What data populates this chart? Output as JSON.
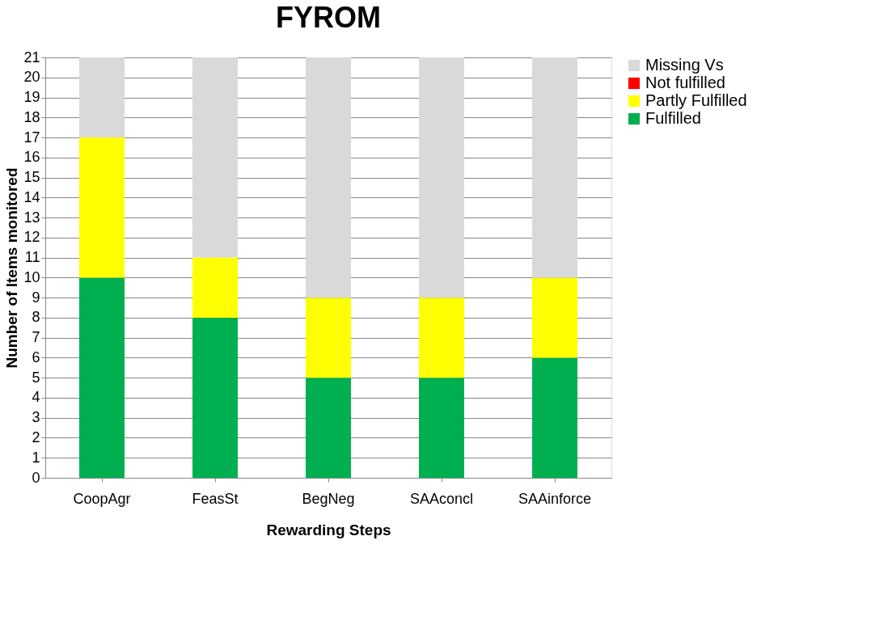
{
  "chart_data": {
    "type": "bar",
    "title": "FYROM",
    "xlabel": "Rewarding Steps",
    "ylabel": "Number of Items monitored",
    "categories": [
      "CoopAgr",
      "FeasSt",
      "BegNeg",
      "SAAconcl",
      "SAAinforce"
    ],
    "series": [
      {
        "name": "Fulfilled",
        "color": "#00b050",
        "values": [
          10,
          8,
          5,
          5,
          6
        ]
      },
      {
        "name": "Partly Fulfilled",
        "color": "#ffff00",
        "values": [
          7,
          3,
          4,
          4,
          4
        ]
      },
      {
        "name": "Not fulfilled",
        "color": "#ff0000",
        "values": [
          0,
          0,
          0,
          0,
          0
        ]
      },
      {
        "name": "Missing Vs",
        "color": "#d9d9d9",
        "values": [
          4,
          10,
          12,
          12,
          11
        ]
      }
    ],
    "stacked": true,
    "ylim": [
      0,
      21
    ],
    "yticks": [
      0,
      1,
      2,
      3,
      4,
      5,
      6,
      7,
      8,
      9,
      10,
      11,
      12,
      13,
      14,
      15,
      16,
      17,
      18,
      19,
      20,
      21
    ],
    "grid": "y",
    "legend": "right"
  }
}
